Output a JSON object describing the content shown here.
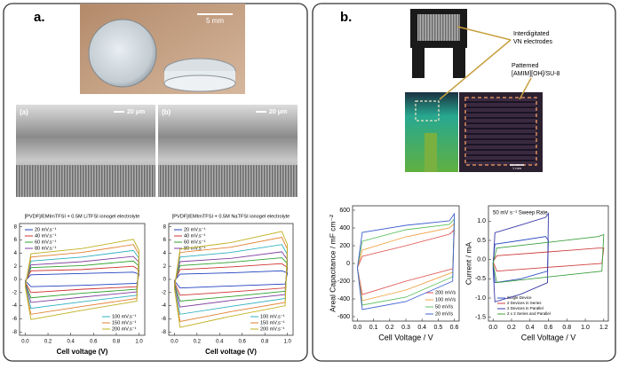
{
  "panel_a": {
    "label": "a.",
    "photo_scale": "5 mm",
    "sem_left_label": "(a)",
    "sem_right_label": "(b)",
    "sem_left_scale": "20 μm",
    "sem_right_scale": "20 μm"
  },
  "panel_b": {
    "label": "b.",
    "callout_electrodes": "Interdigitated VN electrodes",
    "callout_pattern": "Patterned [AMIM][OH]/SU-8",
    "micro_scale": "1 mm"
  },
  "chart_data": [
    {
      "type": "line",
      "title": "[PVDF]/EMImTFSI + 0.5M LiTFSI ionogel electrolyte",
      "xlabel": "Cell voltage (V)",
      "legend": "upper left",
      "x": [
        0,
        0.05,
        0.5,
        0.95,
        1,
        0.98,
        0.5,
        0.05,
        0
      ],
      "xlim": [
        -0.05,
        1.05
      ],
      "ylim": [
        -8.5,
        8.5
      ],
      "xticks": [
        {
          "value": 0,
          "label": "0.0"
        },
        {
          "value": 0.2,
          "label": "0.2"
        },
        {
          "value": 0.4,
          "label": "0.4"
        },
        {
          "value": 0.6,
          "label": "0.6"
        },
        {
          "value": 0.8,
          "label": "0.8"
        },
        {
          "value": 1,
          "label": "1.0"
        }
      ],
      "yticks": [
        -8,
        -6,
        -4,
        -2,
        0,
        2,
        4,
        6,
        8
      ],
      "series": [
        {
          "name": "20 mV.s⁻¹",
          "color": "#2040c0",
          "values": [
            -0.2,
            0.7,
            0.9,
            1.1,
            0.8,
            -0.6,
            -0.9,
            -1.1,
            -0.2
          ]
        },
        {
          "name": "40 mV.s⁻¹",
          "color": "#d03030",
          "values": [
            -0.4,
            1.3,
            1.5,
            2.0,
            1.4,
            -1.1,
            -1.5,
            -2.0,
            -0.4
          ]
        },
        {
          "name": "60 mV.s⁻¹",
          "color": "#30a030",
          "values": [
            -0.5,
            1.8,
            2.1,
            2.8,
            2.0,
            -1.5,
            -2.1,
            -2.8,
            -0.5
          ]
        },
        {
          "name": "80 mV.s⁻¹",
          "color": "#8040a0",
          "values": [
            -0.6,
            2.2,
            2.7,
            3.5,
            2.6,
            -1.9,
            -2.7,
            -3.5,
            -0.6
          ]
        },
        {
          "name": "100 mV.s⁻¹",
          "color": "#30b0c0",
          "values": [
            -0.8,
            2.8,
            3.4,
            4.4,
            3.2,
            -2.4,
            -3.4,
            -4.4,
            -0.8
          ]
        },
        {
          "name": "150 mV.s⁻¹",
          "color": "#e08030",
          "values": [
            -1.0,
            3.4,
            4.1,
            5.3,
            3.8,
            -2.9,
            -4.1,
            -5.3,
            -1.0
          ]
        },
        {
          "name": "200 mV.s⁻¹",
          "color": "#c0b020",
          "values": [
            -1.1,
            3.9,
            4.7,
            6.1,
            4.4,
            -3.3,
            -4.7,
            -6.1,
            -1.1
          ]
        }
      ]
    },
    {
      "type": "line",
      "title": "[PVDF]/EMImTFSI + 0.5M NaTFSI ionogel electrolyte",
      "xlabel": "Cell voltage (V)",
      "legend": "upper left",
      "x": [
        0,
        0.05,
        0.5,
        0.95,
        1,
        0.98,
        0.5,
        0.05,
        0
      ],
      "xlim": [
        -0.05,
        1.05
      ],
      "ylim": [
        -8.5,
        8.5
      ],
      "xticks": [
        {
          "value": 0,
          "label": "0.0"
        },
        {
          "value": 0.2,
          "label": "0.2"
        },
        {
          "value": 0.4,
          "label": "0.4"
        },
        {
          "value": 0.6,
          "label": "0.6"
        },
        {
          "value": 0.8,
          "label": "0.8"
        },
        {
          "value": 1,
          "label": "1.0"
        }
      ],
      "yticks": [
        -8,
        -6,
        -4,
        -2,
        0,
        2,
        4,
        6,
        8
      ],
      "series": [
        {
          "name": "20 mV.s⁻¹",
          "color": "#2040c0",
          "values": [
            -0.2,
            0.8,
            1.0,
            1.3,
            1.0,
            -0.7,
            -1.0,
            -1.3,
            -0.2
          ]
        },
        {
          "name": "40 mV.s⁻¹",
          "color": "#d03030",
          "values": [
            -0.4,
            1.5,
            1.9,
            2.4,
            1.8,
            -1.3,
            -1.9,
            -2.4,
            -0.4
          ]
        },
        {
          "name": "60 mV.s⁻¹",
          "color": "#30a030",
          "values": [
            -0.6,
            2.1,
            2.6,
            3.3,
            2.4,
            -1.8,
            -2.6,
            -3.3,
            -0.6
          ]
        },
        {
          "name": "80 mV.s⁻¹",
          "color": "#8040a0",
          "values": [
            -0.8,
            2.7,
            3.2,
            4.2,
            3.0,
            -2.3,
            -3.2,
            -4.2,
            -0.8
          ]
        },
        {
          "name": "100 mV.s⁻¹",
          "color": "#30b0c0",
          "values": [
            -1.0,
            3.4,
            4.1,
            5.3,
            3.8,
            -2.9,
            -4.1,
            -5.3,
            -1.0
          ]
        },
        {
          "name": "150 mV.s⁻¹",
          "color": "#e08030",
          "values": [
            -1.2,
            4.1,
            4.9,
            6.4,
            4.6,
            -3.5,
            -4.9,
            -6.4,
            -1.2
          ]
        },
        {
          "name": "200 mV.s⁻¹",
          "color": "#c0b020",
          "values": [
            -1.3,
            4.6,
            5.6,
            7.3,
            5.3,
            -4.0,
            -5.6,
            -7.3,
            -1.3
          ]
        }
      ]
    },
    {
      "type": "line",
      "xlabel": "Cell Voltage / V",
      "ylabel": "Areal Capacitance / mF cm⁻²",
      "legend": "lower right",
      "x": [
        0,
        0.03,
        0.3,
        0.57,
        0.6,
        0.59,
        0.3,
        0.03,
        0
      ],
      "xlim": [
        -0.03,
        0.63
      ],
      "ylim": [
        -650,
        650
      ],
      "xticks": [
        {
          "value": 0,
          "label": "0.0"
        },
        {
          "value": 0.1,
          "label": "0.1"
        },
        {
          "value": 0.2,
          "label": "0.2"
        },
        {
          "value": 0.3,
          "label": "0.3"
        },
        {
          "value": 0.4,
          "label": "0.4"
        },
        {
          "value": 0.5,
          "label": "0.5"
        },
        {
          "value": 0.6,
          "label": "0.6"
        }
      ],
      "yticks": [
        -600,
        -400,
        -200,
        0,
        200,
        400,
        600
      ],
      "series": [
        {
          "name": "200 mV/s",
          "color": "#e05050",
          "values": [
            -50,
            80,
            200,
            330,
            380,
            -60,
            -200,
            -350,
            -50
          ]
        },
        {
          "name": "100 mV/s",
          "color": "#f0a040",
          "values": [
            -50,
            150,
            300,
            400,
            450,
            -100,
            -300,
            -420,
            -50
          ]
        },
        {
          "name": "50 mV/s",
          "color": "#60c060",
          "values": [
            -50,
            250,
            380,
            440,
            500,
            -150,
            -380,
            -470,
            -50
          ]
        },
        {
          "name": "20 mV/s",
          "color": "#4060d0",
          "values": [
            -50,
            350,
            430,
            480,
            560,
            -200,
            -430,
            -520,
            -50
          ]
        }
      ]
    },
    {
      "type": "line",
      "xlabel": "Cell Voltage / V",
      "ylabel": "Current / mA",
      "annotation": "50 mV s⁻¹ Sweep Rate",
      "legend": "lower left",
      "xlim": [
        -0.05,
        1.25
      ],
      "ylim": [
        -1.6,
        1.4
      ],
      "xticks": [
        {
          "value": 0,
          "label": "0.0"
        },
        {
          "value": 0.2,
          "label": "0.2"
        },
        {
          "value": 0.4,
          "label": "0.4"
        },
        {
          "value": 0.6,
          "label": "0.6"
        },
        {
          "value": 0.8,
          "label": "0.8"
        },
        {
          "value": 1,
          "label": "1.0"
        },
        {
          "value": 1.2,
          "label": "1.2"
        }
      ],
      "yticks": [
        {
          "value": -1.5,
          "label": "-1.5"
        },
        {
          "value": -1,
          "label": "-1.0"
        },
        {
          "value": -0.5,
          "label": "-0.5"
        },
        {
          "value": 0,
          "label": "0.0"
        },
        {
          "value": 0.5,
          "label": "0.5"
        },
        {
          "value": 1,
          "label": "1.0"
        }
      ],
      "series": [
        {
          "name": "Single Device",
          "color": "#3050c0",
          "x": [
            0,
            0.02,
            0.3,
            0.57,
            0.6,
            0.59,
            0.3,
            0.02,
            0
          ],
          "values": [
            -0.1,
            0.4,
            0.5,
            0.6,
            0.5,
            -0.3,
            -0.5,
            -0.6,
            -0.1
          ]
        },
        {
          "name": "2 Devices in Series",
          "color": "#d04040",
          "x": [
            0,
            0.04,
            0.6,
            1.14,
            1.2,
            1.18,
            0.6,
            0.04,
            0
          ],
          "values": [
            -0.05,
            0.1,
            0.2,
            0.3,
            0.3,
            -0.1,
            -0.2,
            -0.3,
            -0.05
          ]
        },
        {
          "name": "2 Devices in Parallel",
          "color": "#3838a8",
          "x": [
            0,
            0.02,
            0.3,
            0.57,
            0.6,
            0.59,
            0.3,
            0.02,
            0
          ],
          "values": [
            -0.2,
            0.7,
            0.9,
            1.1,
            1.2,
            -0.6,
            -0.9,
            -1.1,
            -0.2
          ]
        },
        {
          "name": "2 x 2 Series and Parallel",
          "color": "#40a040",
          "x": [
            0,
            0.04,
            0.6,
            1.14,
            1.2,
            1.18,
            0.6,
            0.04,
            0
          ],
          "values": [
            -0.1,
            0.3,
            0.45,
            0.6,
            0.65,
            -0.3,
            -0.45,
            -0.6,
            -0.1
          ]
        }
      ]
    }
  ]
}
